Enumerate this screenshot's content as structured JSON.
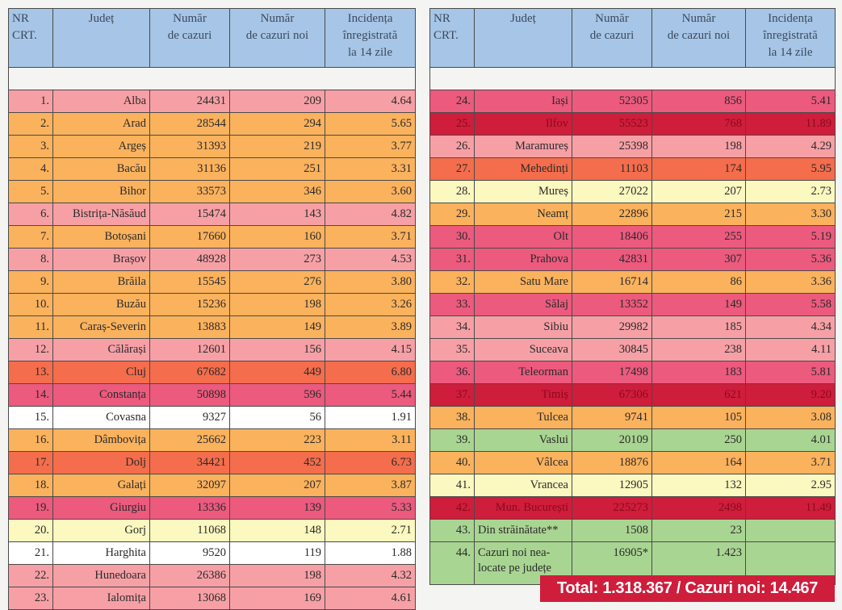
{
  "headers": {
    "nr": [
      "NR",
      "CRT."
    ],
    "judet": "Județ",
    "cazuri": [
      "Număr",
      "de cazuri"
    ],
    "noi": [
      "Număr",
      "de cazuri noi"
    ],
    "incidenta": [
      "Incidența",
      "înregistrată",
      "la 14 zile"
    ]
  },
  "colors": {
    "pink": "#f6a0a6",
    "orange": "#fbb25d",
    "red": "#f46d4c",
    "magenta": "#ec5a7e",
    "dark": "#cf1d3c",
    "white": "#ffffff",
    "yellow": "#fbf8c0",
    "green": "#a9d592",
    "header": "#a7c5e6"
  },
  "left_rows": [
    {
      "nr": "1.",
      "judet": "Alba",
      "cazuri": "24431",
      "noi": "209",
      "incidenta": "4.64",
      "level": "pink"
    },
    {
      "nr": "2.",
      "judet": "Arad",
      "cazuri": "28544",
      "noi": "294",
      "incidenta": "5.65",
      "level": "orange"
    },
    {
      "nr": "3.",
      "judet": "Argeș",
      "cazuri": "31393",
      "noi": "219",
      "incidenta": "3.77",
      "level": "orange"
    },
    {
      "nr": "4.",
      "judet": "Bacău",
      "cazuri": "31136",
      "noi": "251",
      "incidenta": "3.31",
      "level": "orange"
    },
    {
      "nr": "5.",
      "judet": "Bihor",
      "cazuri": "33573",
      "noi": "346",
      "incidenta": "3.60",
      "level": "orange"
    },
    {
      "nr": "6.",
      "judet": "Bistrița-Năsăud",
      "cazuri": "15474",
      "noi": "143",
      "incidenta": "4.82",
      "level": "pink"
    },
    {
      "nr": "7.",
      "judet": "Botoșani",
      "cazuri": "17660",
      "noi": "160",
      "incidenta": "3.71",
      "level": "orange"
    },
    {
      "nr": "8.",
      "judet": "Brașov",
      "cazuri": "48928",
      "noi": "273",
      "incidenta": "4.53",
      "level": "pink"
    },
    {
      "nr": "9.",
      "judet": "Brăila",
      "cazuri": "15545",
      "noi": "276",
      "incidenta": "3.80",
      "level": "orange"
    },
    {
      "nr": "10.",
      "judet": "Buzău",
      "cazuri": "15236",
      "noi": "198",
      "incidenta": "3.26",
      "level": "orange"
    },
    {
      "nr": "11.",
      "judet": "Caraș-Severin",
      "cazuri": "13883",
      "noi": "149",
      "incidenta": "3.89",
      "level": "orange"
    },
    {
      "nr": "12.",
      "judet": "Călărași",
      "cazuri": "12601",
      "noi": "156",
      "incidenta": "4.15",
      "level": "pink"
    },
    {
      "nr": "13.",
      "judet": "Cluj",
      "cazuri": "67682",
      "noi": "449",
      "incidenta": "6.80",
      "level": "red"
    },
    {
      "nr": "14.",
      "judet": "Constanța",
      "cazuri": "50898",
      "noi": "596",
      "incidenta": "5.44",
      "level": "magenta"
    },
    {
      "nr": "15.",
      "judet": "Covasna",
      "cazuri": "9327",
      "noi": "56",
      "incidenta": "1.91",
      "level": "white"
    },
    {
      "nr": "16.",
      "judet": "Dâmbovița",
      "cazuri": "25662",
      "noi": "223",
      "incidenta": "3.11",
      "level": "orange"
    },
    {
      "nr": "17.",
      "judet": "Dolj",
      "cazuri": "34421",
      "noi": "452",
      "incidenta": "6.73",
      "level": "red"
    },
    {
      "nr": "18.",
      "judet": "Galați",
      "cazuri": "32097",
      "noi": "207",
      "incidenta": "3.87",
      "level": "orange"
    },
    {
      "nr": "19.",
      "judet": "Giurgiu",
      "cazuri": "13336",
      "noi": "139",
      "incidenta": "5.33",
      "level": "magenta"
    },
    {
      "nr": "20.",
      "judet": "Gorj",
      "cazuri": "11068",
      "noi": "148",
      "incidenta": "2.71",
      "level": "yellow"
    },
    {
      "nr": "21.",
      "judet": "Harghita",
      "cazuri": "9520",
      "noi": "119",
      "incidenta": "1.88",
      "level": "white"
    },
    {
      "nr": "22.",
      "judet": "Hunedoara",
      "cazuri": "26386",
      "noi": "198",
      "incidenta": "4.32",
      "level": "pink"
    },
    {
      "nr": "23.",
      "judet": "Ialomița",
      "cazuri": "13068",
      "noi": "169",
      "incidenta": "4.61",
      "level": "pink"
    }
  ],
  "right_rows": [
    {
      "nr": "24.",
      "judet": "Iași",
      "cazuri": "52305",
      "noi": "856",
      "incidenta": "5.41",
      "level": "magenta"
    },
    {
      "nr": "25.",
      "judet": "Ilfov",
      "cazuri": "55523",
      "noi": "768",
      "incidenta": "11.89",
      "level": "dark"
    },
    {
      "nr": "26.",
      "judet": "Maramureș",
      "cazuri": "25398",
      "noi": "198",
      "incidenta": "4.29",
      "level": "pink"
    },
    {
      "nr": "27.",
      "judet": "Mehedinți",
      "cazuri": "11103",
      "noi": "174",
      "incidenta": "5.95",
      "level": "red"
    },
    {
      "nr": "28.",
      "judet": "Mureș",
      "cazuri": "27022",
      "noi": "207",
      "incidenta": "2.73",
      "level": "yellow"
    },
    {
      "nr": "29.",
      "judet": "Neamț",
      "cazuri": "22896",
      "noi": "215",
      "incidenta": "3.30",
      "level": "orange"
    },
    {
      "nr": "30.",
      "judet": "Olt",
      "cazuri": "18406",
      "noi": "255",
      "incidenta": "5.19",
      "level": "magenta"
    },
    {
      "nr": "31.",
      "judet": "Prahova",
      "cazuri": "42831",
      "noi": "307",
      "incidenta": "5.36",
      "level": "magenta"
    },
    {
      "nr": "32.",
      "judet": "Satu Mare",
      "cazuri": "16714",
      "noi": "86",
      "incidenta": "3.36",
      "level": "orange"
    },
    {
      "nr": "33.",
      "judet": "Sălaj",
      "cazuri": "13352",
      "noi": "149",
      "incidenta": "5.58",
      "level": "magenta"
    },
    {
      "nr": "34.",
      "judet": "Sibiu",
      "cazuri": "29982",
      "noi": "185",
      "incidenta": "4.34",
      "level": "pink"
    },
    {
      "nr": "35.",
      "judet": "Suceava",
      "cazuri": "30845",
      "noi": "238",
      "incidenta": "4.11",
      "level": "pink"
    },
    {
      "nr": "36.",
      "judet": "Teleorman",
      "cazuri": "17498",
      "noi": "183",
      "incidenta": "5.81",
      "level": "magenta"
    },
    {
      "nr": "37.",
      "judet": "Timiș",
      "cazuri": "67306",
      "noi": "621",
      "incidenta": "9.20",
      "level": "dark"
    },
    {
      "nr": "38.",
      "judet": "Tulcea",
      "cazuri": "9741",
      "noi": "105",
      "incidenta": "3.08",
      "level": "orange"
    },
    {
      "nr": "39.",
      "judet": "Vaslui",
      "cazuri": "20109",
      "noi": "250",
      "incidenta": "4.01",
      "level": "green"
    },
    {
      "nr": "40.",
      "judet": "Vâlcea",
      "cazuri": "18876",
      "noi": "164",
      "incidenta": "3.71",
      "level": "orange"
    },
    {
      "nr": "41.",
      "judet": "Vrancea",
      "cazuri": "12905",
      "noi": "132",
      "incidenta": "2.95",
      "level": "yellow"
    },
    {
      "nr": "42.",
      "judet": "Mun. București",
      "cazuri": "225273",
      "noi": "2498",
      "incidenta": "11.49",
      "level": "dark"
    },
    {
      "nr": "43.",
      "judet": "Din străinătate**",
      "cazuri": "1508",
      "noi": "23",
      "incidenta": "",
      "level": "green",
      "name_left": true
    },
    {
      "nr": "44.",
      "judet": "Cazuri noi nea-locate pe județe",
      "cazuri": "16905*",
      "noi": "1.423",
      "incidenta": "",
      "level": "green",
      "tall": true
    }
  ],
  "total_banner": "Total: 1.318.367 / Cazuri noi: 14.467"
}
